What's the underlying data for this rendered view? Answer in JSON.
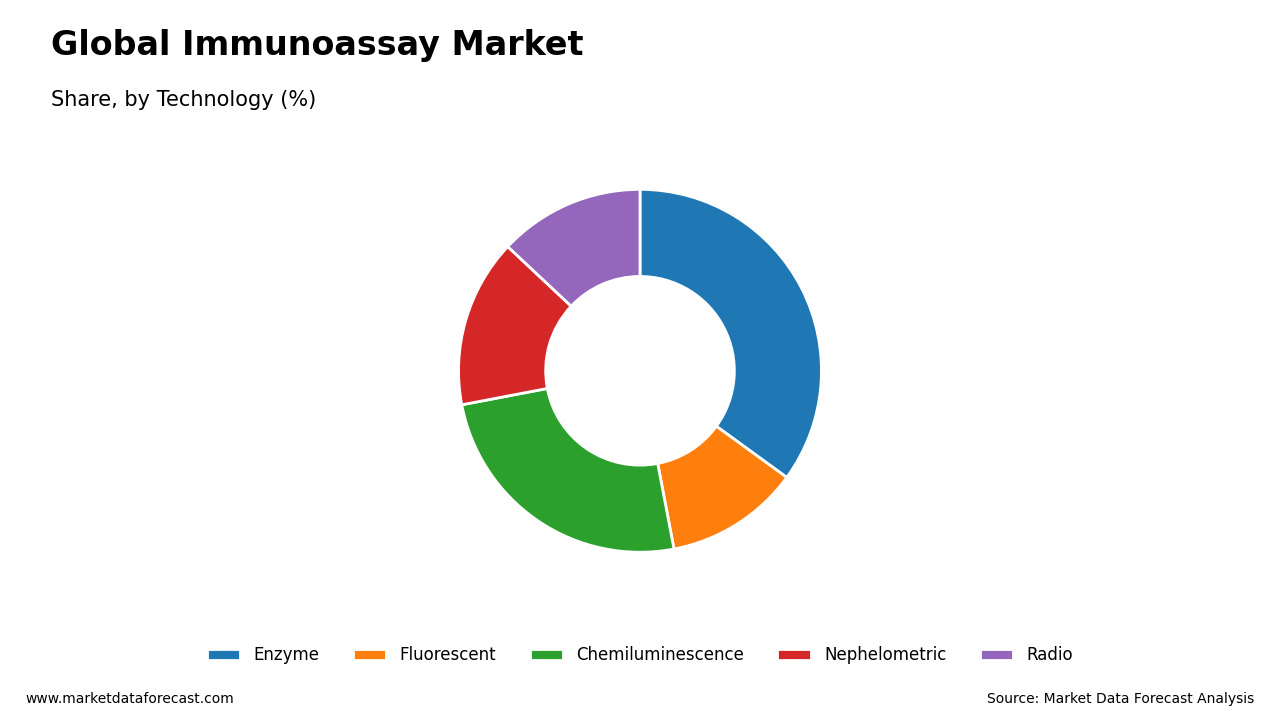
{
  "chart_data": {
    "type": "pie",
    "title": "Global Immunoassay Market",
    "subtitle": "Share, by Technology (%)",
    "categories": [
      "Enzyme",
      "Fluorescent",
      "Chemiluminescence",
      "Nephelometric",
      "Radio"
    ],
    "values": [
      35,
      12,
      25,
      15,
      13
    ],
    "legend": "lower center",
    "annotations": [
      "www.marketdataforecast.com",
      "Source: Market Data Forecast Analysis"
    ]
  }
}
